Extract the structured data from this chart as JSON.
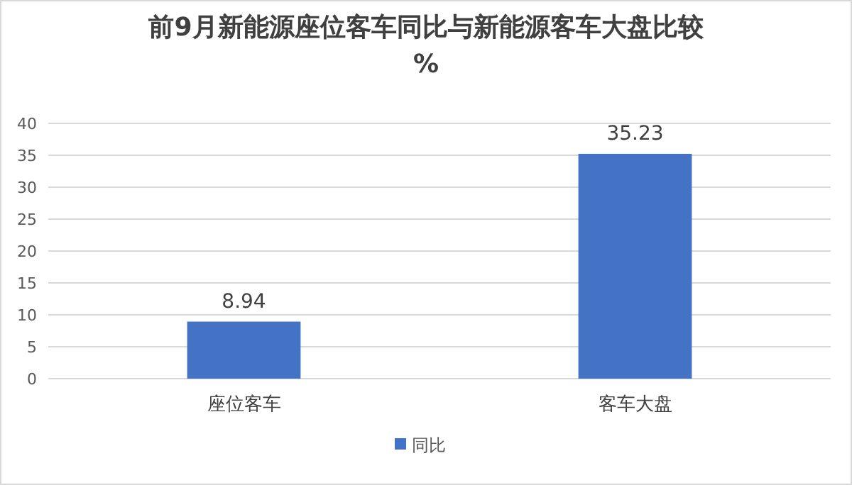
{
  "chart_data": {
    "type": "bar",
    "title": "前9月新能源座位客车同比与新能源客车大盘比较%",
    "categories": [
      "座位客车",
      "客车大盘"
    ],
    "series": [
      {
        "name": "同比",
        "color": "#4472c4",
        "values": [
          8.94,
          35.23
        ]
      }
    ],
    "ylim": [
      0,
      40
    ],
    "yticks": [
      0,
      5,
      10,
      15,
      20,
      25,
      30,
      35,
      40
    ],
    "grid": "y",
    "data_labels": true,
    "legend": "bottom"
  }
}
